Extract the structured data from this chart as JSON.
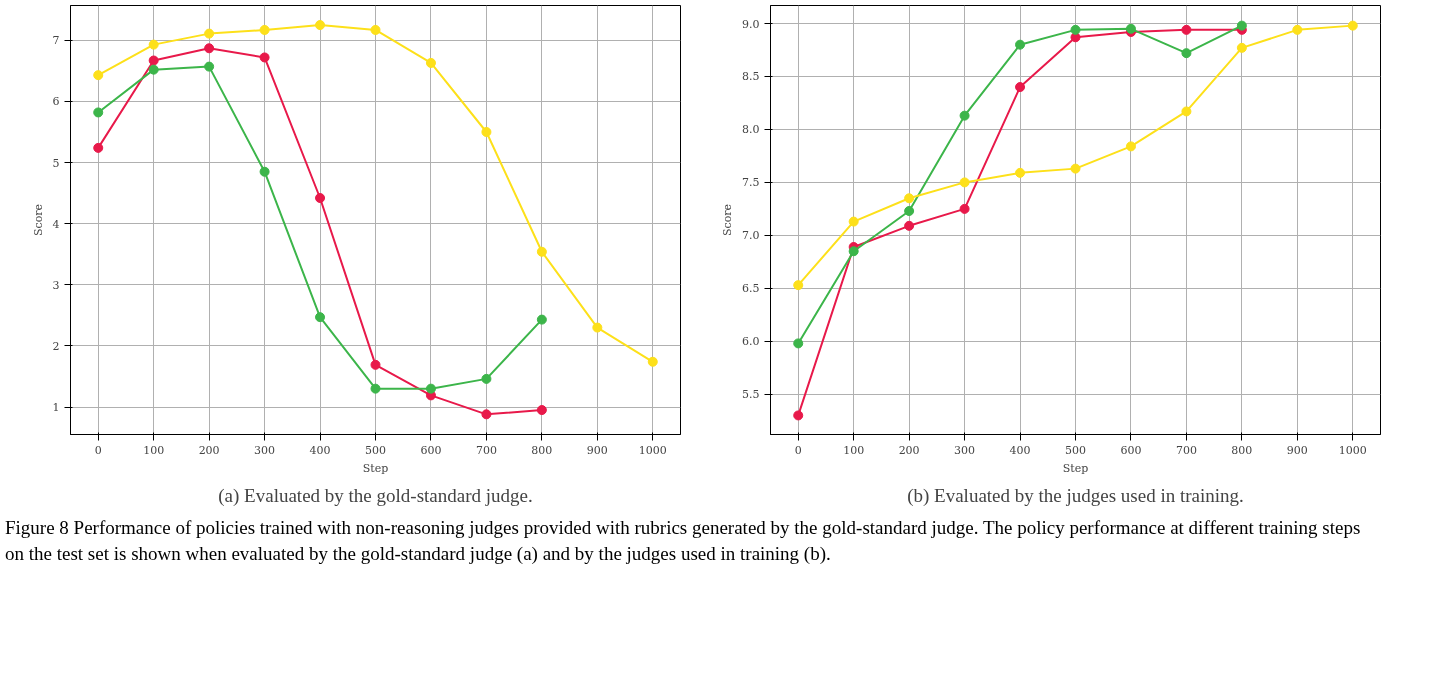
{
  "chart_data": [
    {
      "type": "line",
      "title": "(a) Evaluated by the gold-standard judge.",
      "xlabel": "Step",
      "ylabel": "Score",
      "x": [
        0,
        100,
        200,
        300,
        400,
        500,
        600,
        700,
        800,
        900,
        1000
      ],
      "series": [
        {
          "color": "#e8194a",
          "values": [
            5.24,
            6.67,
            6.87,
            6.72,
            4.42,
            1.69,
            1.19,
            0.88,
            0.95,
            null,
            null
          ]
        },
        {
          "color": "#3cb54a",
          "values": [
            5.82,
            6.52,
            6.57,
            4.85,
            2.47,
            1.3,
            1.3,
            1.46,
            2.43,
            null,
            null
          ]
        },
        {
          "color": "#fde01a",
          "values": [
            6.43,
            6.93,
            7.11,
            7.17,
            7.25,
            7.17,
            6.63,
            5.5,
            3.54,
            2.3,
            1.74
          ]
        }
      ],
      "xlim": [
        -50,
        1050
      ],
      "ylim": [
        0.55,
        7.57
      ],
      "xticks": [
        0,
        100,
        200,
        300,
        400,
        500,
        600,
        700,
        800,
        900,
        1000
      ],
      "yticks": [
        1,
        2,
        3,
        4,
        5,
        6,
        7
      ],
      "grid": true,
      "marker": "circle",
      "line_style": "solid"
    },
    {
      "type": "line",
      "title": "(b) Evaluated by the judges used in training.",
      "xlabel": "Step",
      "ylabel": "Score",
      "x": [
        0,
        100,
        200,
        300,
        400,
        500,
        600,
        700,
        800,
        900,
        1000
      ],
      "series": [
        {
          "color": "#e8194a",
          "values": [
            5.3,
            6.89,
            7.09,
            7.25,
            8.4,
            8.87,
            8.92,
            8.94,
            8.94,
            null,
            null
          ]
        },
        {
          "color": "#3cb54a",
          "values": [
            5.98,
            6.85,
            7.23,
            8.13,
            8.8,
            8.94,
            8.95,
            8.72,
            8.98,
            null,
            null
          ]
        },
        {
          "color": "#fde01a",
          "values": [
            6.53,
            7.13,
            7.35,
            7.5,
            7.59,
            7.63,
            7.84,
            8.17,
            8.77,
            8.94,
            8.98
          ]
        }
      ],
      "xlim": [
        -50,
        1050
      ],
      "ylim": [
        5.12,
        9.17
      ],
      "xticks": [
        0,
        100,
        200,
        300,
        400,
        500,
        600,
        700,
        800,
        900,
        1000
      ],
      "yticks": [
        {
          "value": 5.5,
          "label": "5.5"
        },
        {
          "value": 6,
          "label": "6.0"
        },
        {
          "value": 6.5,
          "label": "6.5"
        },
        {
          "value": 7,
          "label": "7.0"
        },
        {
          "value": 7.5,
          "label": "7.5"
        },
        {
          "value": 8,
          "label": "8.0"
        },
        {
          "value": 8.5,
          "label": "8.5"
        },
        {
          "value": 9,
          "label": "9.0"
        }
      ],
      "grid": true,
      "marker": "circle",
      "line_style": "solid",
      "annotations": [
        "Figure 8  Performance of policies trained with non-reasoning judges provided with rubrics generated by the gold-standard judge. The policy performance at different training steps on the test set is shown when evaluated by the gold-standard judge (a) and by the judges used in training (b)."
      ]
    }
  ]
}
